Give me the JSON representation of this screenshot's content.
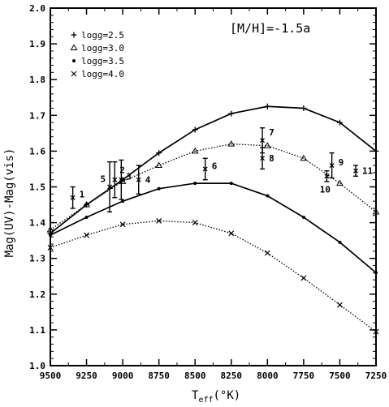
{
  "chart_data": {
    "type": "line",
    "annotation": "[M/H]=-1.5a",
    "xlabel_main": "T",
    "xlabel_sub": "eff",
    "xlabel_unit": "(°K)",
    "ylabel": "Mag(UV)-Mag(vis)",
    "xlim": [
      9500,
      7250
    ],
    "ylim": [
      1.0,
      2.0
    ],
    "x_ticks": [
      9500,
      9250,
      9000,
      8750,
      8500,
      8250,
      8000,
      7750,
      7500,
      7250
    ],
    "y_ticks": [
      "1.0",
      "1.1",
      "1.2",
      "1.3",
      "1.4",
      "1.5",
      "1.6",
      "1.7",
      "1.8",
      "1.9",
      "2.0"
    ],
    "grid": false,
    "legend_position": "top-left",
    "x": [
      9500,
      9250,
      9000,
      8750,
      8500,
      8250,
      8000,
      7750,
      7500,
      7250
    ],
    "series": [
      {
        "name": "logg=2.5",
        "marker": "plus",
        "dash": "solid",
        "values": [
          1.37,
          1.45,
          1.52,
          1.595,
          1.66,
          1.705,
          1.725,
          1.72,
          1.68,
          1.6
        ]
      },
      {
        "name": "logg=3.0",
        "marker": "triangle",
        "dash": "dotted",
        "values": [
          1.38,
          1.45,
          1.515,
          1.56,
          1.6,
          1.62,
          1.615,
          1.58,
          1.51,
          1.43
        ]
      },
      {
        "name": "logg=3.5",
        "marker": "dot",
        "dash": "solid",
        "values": [
          1.365,
          1.415,
          1.46,
          1.495,
          1.51,
          1.51,
          1.475,
          1.415,
          1.345,
          1.26
        ]
      },
      {
        "name": "logg=4.0",
        "marker": "cross",
        "dash": "dotted",
        "values": [
          1.33,
          1.365,
          1.395,
          1.405,
          1.4,
          1.37,
          1.315,
          1.245,
          1.17,
          1.095
        ]
      }
    ],
    "observations": [
      {
        "label": "1",
        "x": 9345,
        "y": 1.47,
        "err": 0.03
      },
      {
        "label": "5",
        "x": 9090,
        "y": 1.5,
        "err": 0.07
      },
      {
        "label": "2",
        "x": 9055,
        "y": 1.52,
        "err": 0.05
      },
      {
        "label": "3",
        "x": 9010,
        "y": 1.52,
        "err": 0.055
      },
      {
        "label": "4",
        "x": 8890,
        "y": 1.52,
        "err": 0.04
      },
      {
        "label": "6",
        "x": 8430,
        "y": 1.55,
        "err": 0.03
      },
      {
        "label": "7",
        "x": 8035,
        "y": 1.63,
        "err": 0.035
      },
      {
        "label": "8",
        "x": 8035,
        "y": 1.58,
        "err": 0.03
      },
      {
        "label": "10",
        "x": 7590,
        "y": 1.53,
        "err": 0.015
      },
      {
        "label": "9",
        "x": 7555,
        "y": 1.56,
        "err": 0.035
      },
      {
        "label": "11",
        "x": 7390,
        "y": 1.545,
        "err": 0.015
      }
    ]
  }
}
